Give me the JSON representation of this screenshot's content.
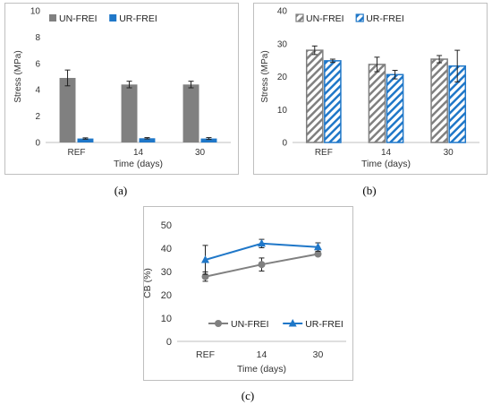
{
  "chart_data": [
    {
      "id": "a",
      "type": "bar",
      "ylabel": "Stress (MPa)",
      "xlabel": "Time (days)",
      "categories": [
        "REF",
        "14",
        "30"
      ],
      "ylim": [
        0,
        10
      ],
      "yticks": [
        0,
        2,
        4,
        6,
        8,
        10
      ],
      "legend": "top-left",
      "grid": false,
      "series": [
        {
          "name": "UN-FREI",
          "values": [
            4.9,
            4.4,
            4.4
          ],
          "errors": [
            0.6,
            0.25,
            0.25
          ],
          "color": "#808080",
          "pattern": "solid"
        },
        {
          "name": "UR-FREI",
          "values": [
            0.3,
            0.32,
            0.3
          ],
          "errors": [
            0.05,
            0.05,
            0.07
          ],
          "color": "#1f77c8",
          "pattern": "solid"
        }
      ]
    },
    {
      "id": "b",
      "type": "bar",
      "ylabel": "Stress (MPa)",
      "xlabel": "Time (days)",
      "categories": [
        "REF",
        "14",
        "30"
      ],
      "ylim": [
        0,
        40
      ],
      "yticks": [
        0,
        10,
        20,
        30,
        40
      ],
      "legend": "top-left",
      "grid": false,
      "series": [
        {
          "name": "UN-FREI",
          "values": [
            28.0,
            23.7,
            25.3
          ],
          "errors": [
            1.3,
            2.2,
            1.1
          ],
          "color": "#808080",
          "pattern": "hatched"
        },
        {
          "name": "UR-FREI",
          "values": [
            24.8,
            20.6,
            23.2
          ],
          "errors": [
            0.5,
            1.3,
            4.8
          ],
          "color": "#1f77c8",
          "pattern": "hatched"
        }
      ]
    },
    {
      "id": "c",
      "type": "line",
      "ylabel": "CB (%)",
      "xlabel": "Time (days)",
      "categories": [
        "REF",
        "14",
        "30"
      ],
      "ylim": [
        0,
        50
      ],
      "yticks": [
        0,
        10,
        20,
        30,
        40,
        50
      ],
      "legend": "bottom",
      "grid": false,
      "series": [
        {
          "name": "UN-FREI",
          "values": [
            27.8,
            33.0,
            37.5
          ],
          "errors": [
            2.0,
            2.8,
            0.8
          ],
          "color": "#808080",
          "marker": "circle"
        },
        {
          "name": "UR-FREI",
          "values": [
            35.0,
            42.0,
            40.5
          ],
          "errors": [
            6.2,
            1.8,
            1.8
          ],
          "color": "#1f77c8",
          "marker": "triangle"
        }
      ]
    }
  ],
  "captions": {
    "a": "(a)",
    "b": "(b)",
    "c": "(c)"
  }
}
